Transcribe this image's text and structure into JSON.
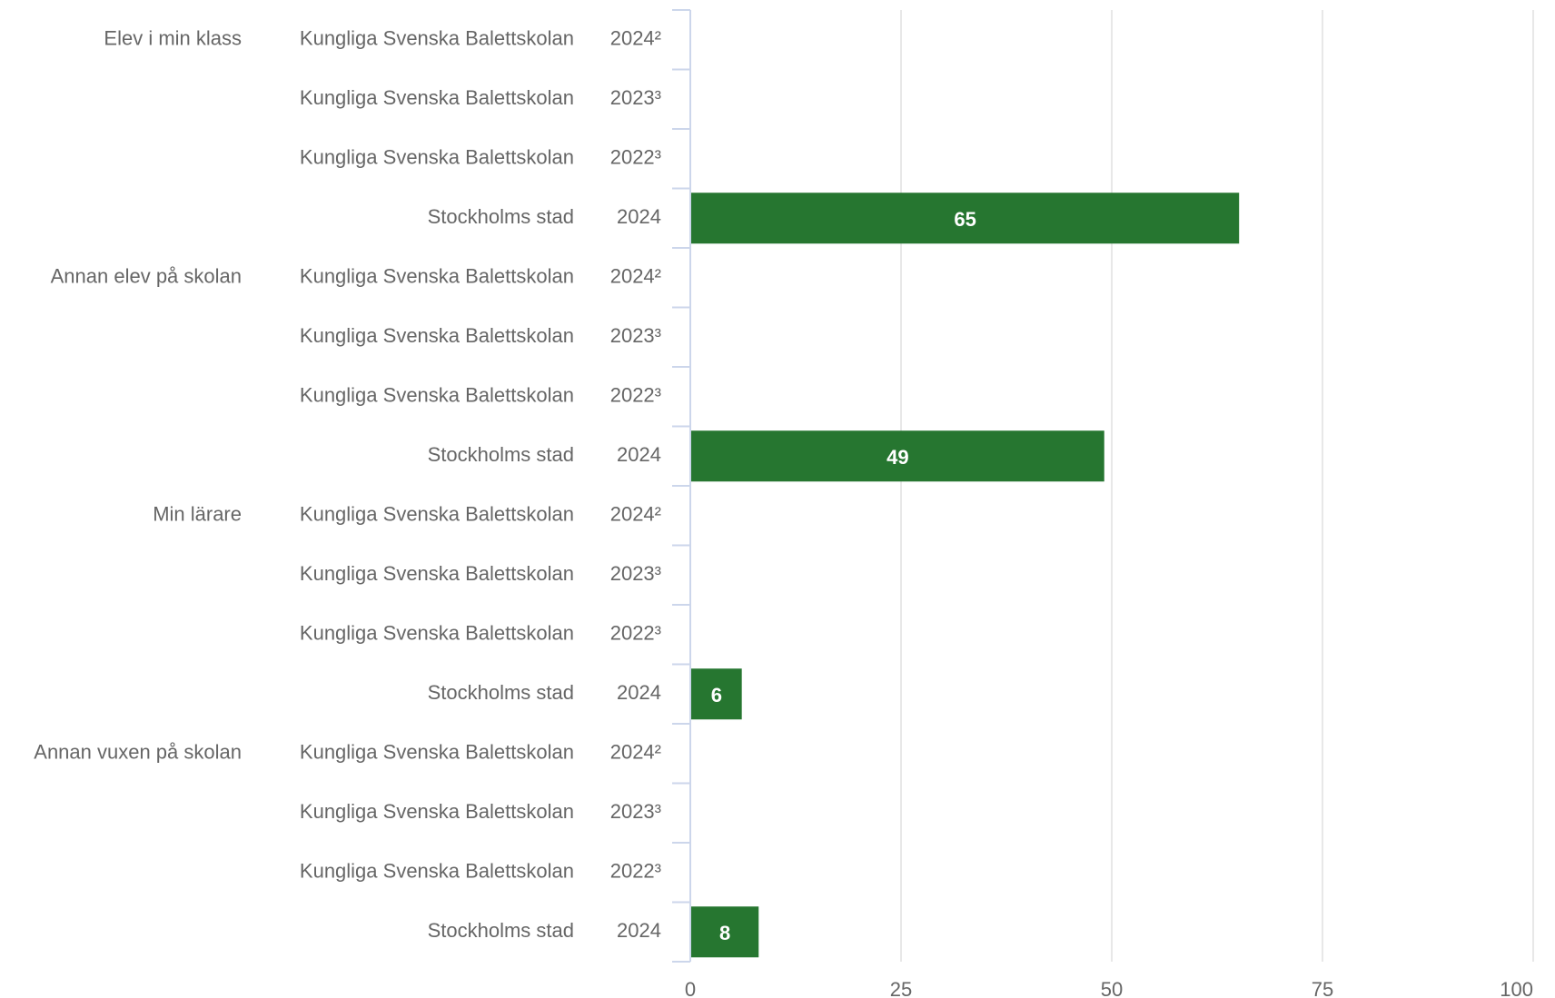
{
  "chart_data": {
    "type": "bar",
    "orientation": "horizontal",
    "groups": [
      "Elev i min klass",
      "Annan elev på skolan",
      "Min lärare",
      "Annan vuxen på skolan"
    ],
    "categories": [
      "Kungliga Svenska Balettskolan",
      "Kungliga Svenska Balettskolan",
      "Kungliga Svenska Balettskolan",
      "Stockholms stad",
      "Kungliga Svenska Balettskolan",
      "Kungliga Svenska Balettskolan",
      "Kungliga Svenska Balettskolan",
      "Stockholms stad",
      "Kungliga Svenska Balettskolan",
      "Kungliga Svenska Balettskolan",
      "Kungliga Svenska Balettskolan",
      "Stockholms stad",
      "Kungliga Svenska Balettskolan",
      "Kungliga Svenska Balettskolan",
      "Kungliga Svenska Balettskolan",
      "Stockholms stad"
    ],
    "years": [
      "2024²",
      "2023³",
      "2022³",
      "2024",
      "2024²",
      "2023³",
      "2022³",
      "2024",
      "2024²",
      "2023³",
      "2022³",
      "2024",
      "2024²",
      "2023³",
      "2022³",
      "2024"
    ],
    "values": [
      null,
      null,
      null,
      65,
      null,
      null,
      null,
      49,
      null,
      null,
      null,
      6,
      null,
      null,
      null,
      8
    ],
    "color": "#267630",
    "xlim": [
      0,
      100
    ],
    "xticks": [
      0,
      25,
      50,
      75,
      100
    ],
    "grid": true
  }
}
